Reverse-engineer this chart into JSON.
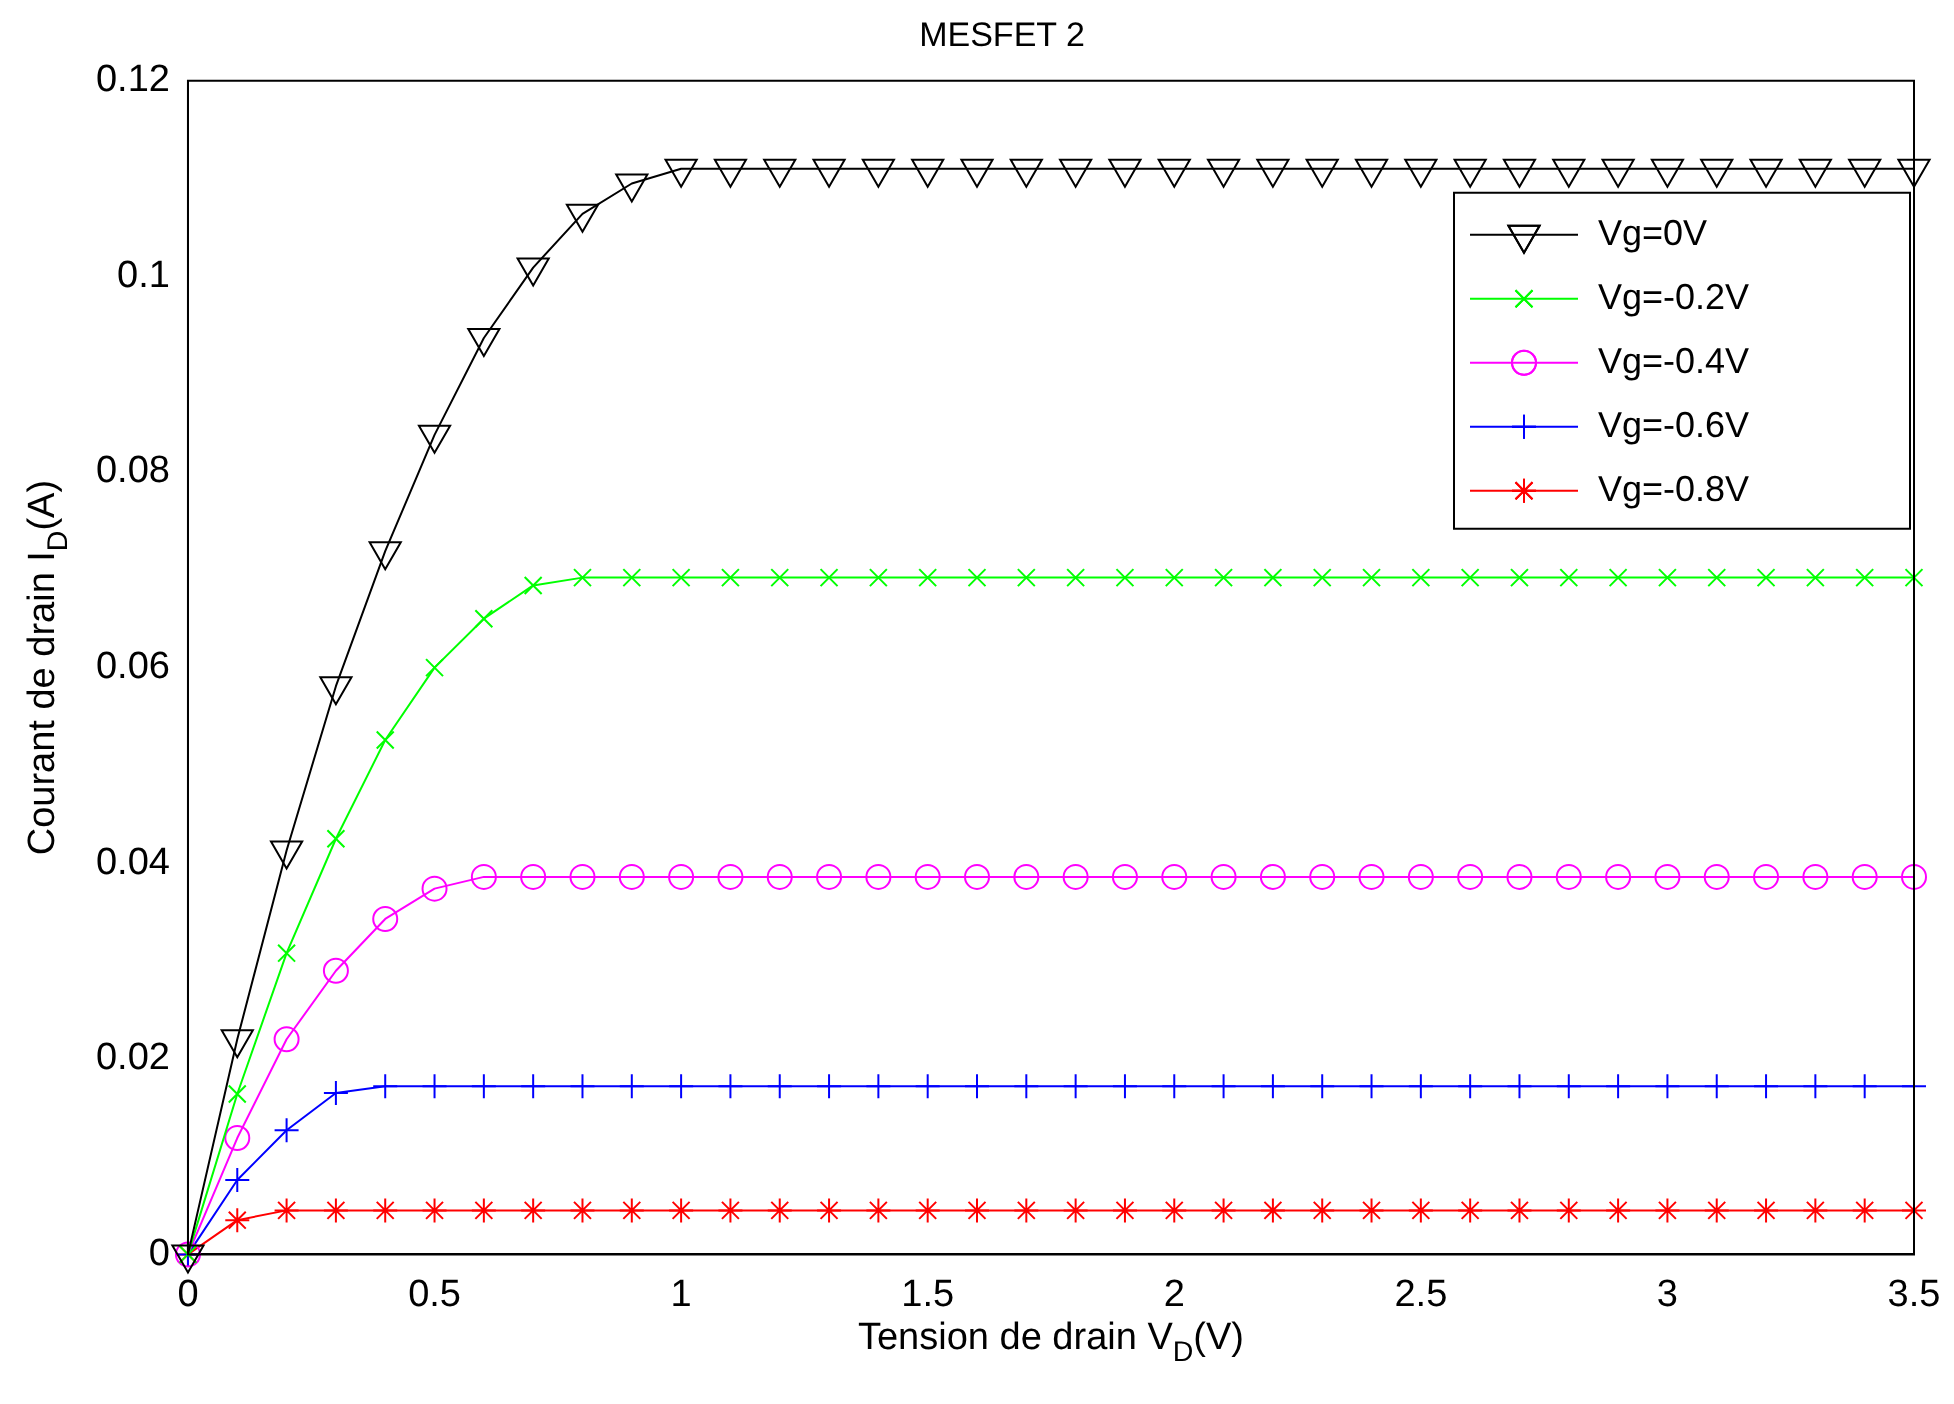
{
  "chart_data": {
    "type": "line",
    "title": "MESFET 2",
    "xlabel": "Tension de drain V$_{D}$(V)",
    "ylabel": "Courant de drain I$_{D}$(A)",
    "x": [
      0,
      0.1,
      0.2,
      0.3,
      0.4,
      0.5,
      0.6,
      0.7,
      0.8,
      0.9,
      1,
      1.1,
      1.2,
      1.3,
      1.4,
      1.5,
      1.6,
      1.7,
      1.8,
      1.9,
      2,
      2.1,
      2.2,
      2.3,
      2.4,
      2.5,
      2.6,
      2.7,
      2.8,
      2.9,
      3,
      3.1,
      3.2,
      3.3,
      3.4,
      3.5
    ],
    "series": [
      {
        "name": "Vg=0V",
        "color": "#000000",
        "marker": "triangle",
        "values": [
          0,
          0.022,
          0.0413,
          0.0581,
          0.0719,
          0.0838,
          0.0937,
          0.1009,
          0.1064,
          0.1095,
          0.111,
          0.111,
          0.111,
          0.111,
          0.111,
          0.111,
          0.111,
          0.111,
          0.111,
          0.111,
          0.111,
          0.111,
          0.111,
          0.111,
          0.111,
          0.111,
          0.111,
          0.111,
          0.111,
          0.111,
          0.111,
          0.111,
          0.111,
          0.111,
          0.111,
          0.111
        ]
      },
      {
        "name": "Vg=-0.2V",
        "color": "#00ff00",
        "marker": "x",
        "values": [
          0,
          0.0164,
          0.0308,
          0.0425,
          0.0526,
          0.06,
          0.065,
          0.0684,
          0.0692,
          0.0692,
          0.0692,
          0.0692,
          0.0692,
          0.0692,
          0.0692,
          0.0692,
          0.0692,
          0.0692,
          0.0692,
          0.0692,
          0.0692,
          0.0692,
          0.0692,
          0.0692,
          0.0692,
          0.0692,
          0.0692,
          0.0692,
          0.0692,
          0.0692,
          0.0692,
          0.0692,
          0.0692,
          0.0692,
          0.0692,
          0.0692
        ]
      },
      {
        "name": "Vg=-0.4V",
        "color": "#ff00ff",
        "marker": "circle",
        "values": [
          0,
          0.0119,
          0.022,
          0.029,
          0.0343,
          0.0374,
          0.0386,
          0.0386,
          0.0386,
          0.0386,
          0.0386,
          0.0386,
          0.0386,
          0.0386,
          0.0386,
          0.0386,
          0.0386,
          0.0386,
          0.0386,
          0.0386,
          0.0386,
          0.0386,
          0.0386,
          0.0386,
          0.0386,
          0.0386,
          0.0386,
          0.0386,
          0.0386,
          0.0386,
          0.0386,
          0.0386,
          0.0386,
          0.0386,
          0.0386,
          0.0386
        ]
      },
      {
        "name": "Vg=-0.6V",
        "color": "#0000ff",
        "marker": "plus",
        "values": [
          0,
          0.0076,
          0.0127,
          0.0165,
          0.0172,
          0.0172,
          0.0172,
          0.0172,
          0.0172,
          0.0172,
          0.0172,
          0.0172,
          0.0172,
          0.0172,
          0.0172,
          0.0172,
          0.0172,
          0.0172,
          0.0172,
          0.0172,
          0.0172,
          0.0172,
          0.0172,
          0.0172,
          0.0172,
          0.0172,
          0.0172,
          0.0172,
          0.0172,
          0.0172,
          0.0172,
          0.0172,
          0.0172,
          0.0172,
          0.0172,
          0.0172
        ]
      },
      {
        "name": "Vg=-0.8V",
        "color": "#ff0000",
        "marker": "cross",
        "values": [
          0,
          0.0035,
          0.0045,
          0.0045,
          0.0045,
          0.0045,
          0.0045,
          0.0045,
          0.0045,
          0.0045,
          0.0045,
          0.0045,
          0.0045,
          0.0045,
          0.0045,
          0.0045,
          0.0045,
          0.0045,
          0.0045,
          0.0045,
          0.0045,
          0.0045,
          0.0045,
          0.0045,
          0.0045,
          0.0045,
          0.0045,
          0.0045,
          0.0045,
          0.0045,
          0.0045,
          0.0045,
          0.0045,
          0.0045,
          0.0045,
          0.0045
        ]
      }
    ],
    "xlim": [
      0,
      3.5
    ],
    "xticks": [
      0,
      0.5,
      1,
      1.5,
      2,
      2.5,
      3,
      3.5
    ],
    "ylim": [
      0,
      0.12
    ],
    "yticks": [
      0,
      0.02,
      0.04,
      0.06,
      0.08,
      0.1,
      0.12
    ],
    "legend": "top right",
    "line_style": "solid"
  }
}
